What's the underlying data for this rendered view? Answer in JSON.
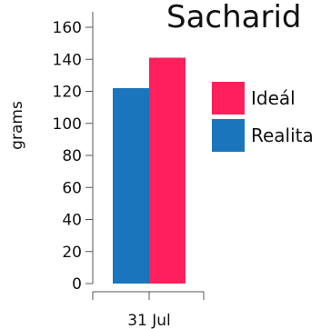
{
  "chart_data": {
    "type": "bar",
    "title": "Sacharid",
    "xlabel": "",
    "ylabel": "grams",
    "categories": [
      "31 Jul"
    ],
    "series": [
      {
        "name": "Realita",
        "values": [
          122
        ],
        "color": "#1a75bc"
      },
      {
        "name": "Ideál",
        "values": [
          141
        ],
        "color": "#ff1f5a"
      }
    ],
    "ylim": [
      0,
      160
    ],
    "yticks": [
      0,
      20,
      40,
      60,
      80,
      100,
      120,
      140,
      160
    ],
    "legend": {
      "placement": "right",
      "order": [
        "Ideál",
        "Realita"
      ]
    },
    "grid": false
  }
}
